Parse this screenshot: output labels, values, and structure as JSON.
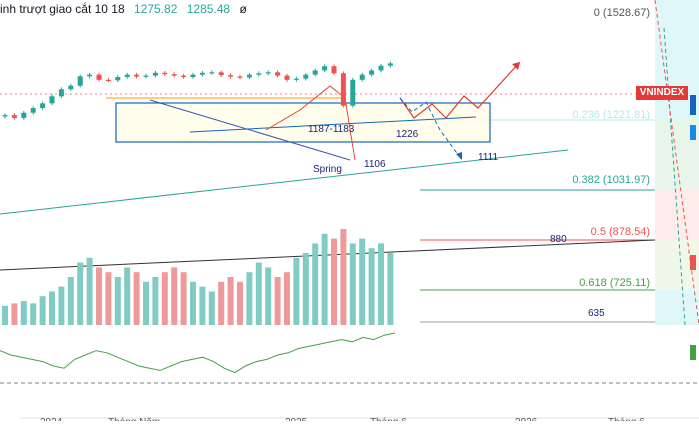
{
  "header": {
    "title": "inh trượt giao cắt 10 18",
    "value_1": "1275.82",
    "value_2": "1285.48",
    "value_3": "ø"
  },
  "symbol_tag": "VNINDEX",
  "colors": {
    "up": "#26a69a",
    "down": "#ef5350",
    "box": "#1565c0",
    "projection": "#e53935",
    "trendline": "#26a69a",
    "rsi": "#43a047"
  },
  "chart_data": {
    "type": "candlestick",
    "time_labels": [
      "2024",
      "Tháng Năm",
      "2025",
      "Tháng 6",
      "2026",
      "Tháng 6"
    ],
    "fibonacci_levels": [
      {
        "label": "0 (1528.67)",
        "value": 1528.67
      },
      {
        "label": "0.236 (1221.81)",
        "value": 1221.81
      },
      {
        "label": "0.382 (1031.97)",
        "value": 1031.97
      },
      {
        "label": "0.5 (878.54)",
        "value": 878.54
      },
      {
        "label": "0.618 (725.11)",
        "value": 725.11
      }
    ],
    "annotations": [
      {
        "text": "1187-1183",
        "value": 1187
      },
      {
        "text": "1226",
        "value": 1226
      },
      {
        "text": "Spring",
        "value": 1106
      },
      {
        "text": "1106",
        "value": 1106
      },
      {
        "text": "1111",
        "value": 1111
      },
      {
        "text": "880",
        "value": 880
      },
      {
        "text": "635",
        "value": 635
      }
    ],
    "price_series": [
      1090,
      1078,
      1100,
      1120,
      1140,
      1170,
      1200,
      1215,
      1255,
      1262,
      1240,
      1238,
      1252,
      1262,
      1254,
      1258,
      1270,
      1264,
      1258,
      1252,
      1262,
      1270,
      1272,
      1260,
      1254,
      1250,
      1262,
      1268,
      1272,
      1258,
      1240,
      1245,
      1262,
      1280,
      1298,
      1268,
      1130,
      1240,
      1262,
      1280,
      1300,
      1310
    ],
    "volume_series": [
      8,
      9,
      10,
      9,
      12,
      14,
      16,
      20,
      26,
      28,
      24,
      22,
      20,
      24,
      22,
      18,
      20,
      22,
      24,
      22,
      18,
      16,
      14,
      18,
      20,
      18,
      22,
      26,
      24,
      20,
      22,
      28,
      30,
      34,
      38,
      36,
      40,
      34,
      36,
      32,
      34,
      30
    ],
    "rsi_series": [
      54,
      50,
      48,
      46,
      44,
      40,
      38,
      46,
      50,
      54,
      52,
      48,
      44,
      40,
      38,
      36,
      40,
      44,
      46,
      48,
      44,
      38,
      34,
      40,
      44,
      46,
      50,
      52,
      56,
      58,
      60,
      62,
      64,
      62,
      66,
      64,
      68,
      70
    ]
  }
}
